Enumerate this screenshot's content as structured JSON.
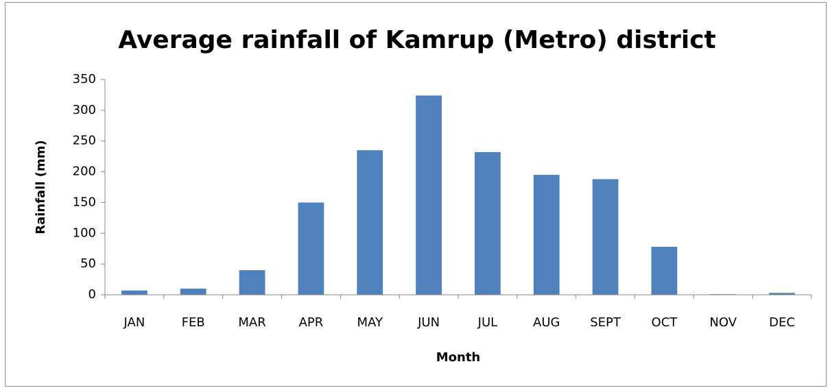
{
  "chart_data": {
    "type": "bar",
    "title": "Average rainfall of Kamrup (Metro) district",
    "x_label": "Month",
    "y_label": "Rainfall (mm)",
    "categories": [
      "JAN",
      "FEB",
      "MAR",
      "APR",
      "MAY",
      "JUN",
      "JUL",
      "AUG",
      "SEPT",
      "OCT",
      "NOV",
      "DEC"
    ],
    "values": [
      7,
      10,
      40,
      150,
      235,
      324,
      232,
      195,
      188,
      78,
      1,
      3
    ],
    "color": "#4f81bd",
    "ylim": [
      0,
      350
    ],
    "yticks": [
      0,
      50,
      100,
      150,
      200,
      250,
      300,
      350
    ],
    "grid": false
  }
}
